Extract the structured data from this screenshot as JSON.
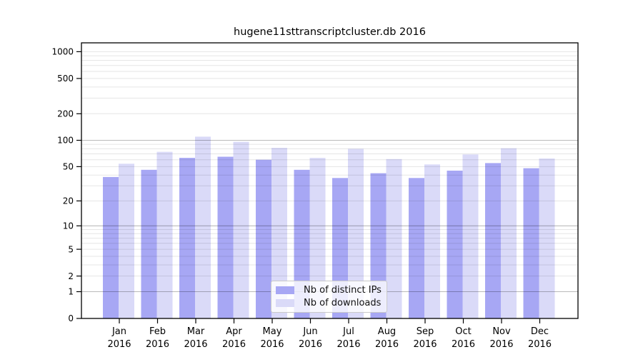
{
  "chart_data": {
    "type": "bar",
    "title": "hugene11sttranscriptcluster.db 2016",
    "x_categories": [
      "Jan",
      "Feb",
      "Mar",
      "Apr",
      "May",
      "Jun",
      "Jul",
      "Aug",
      "Sep",
      "Oct",
      "Nov",
      "Dec"
    ],
    "x_year": "2016",
    "series": [
      {
        "name": "Nb of distinct IPs",
        "color": "#a7a7f4",
        "values": [
          38,
          46,
          63,
          65,
          60,
          46,
          37,
          42,
          37,
          45,
          55,
          48
        ]
      },
      {
        "name": "Nb of downloads",
        "color": "#dadaf8",
        "values": [
          54,
          74,
          110,
          96,
          82,
          63,
          80,
          61,
          53,
          69,
          81,
          62
        ]
      }
    ],
    "y_scale": "log10(1+x)",
    "y_ticks": [
      0,
      1,
      2,
      5,
      10,
      20,
      50,
      100,
      200,
      500,
      1000
    ],
    "y_major_gridlines": [
      1,
      10,
      100
    ],
    "ylim": [
      0,
      1280
    ],
    "grid": true,
    "legend_position": "bottom-center"
  }
}
